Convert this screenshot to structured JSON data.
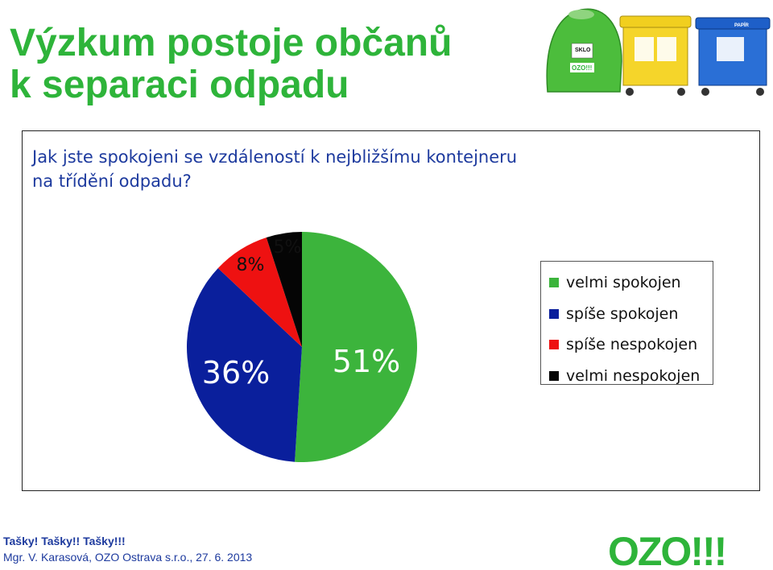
{
  "slide": {
    "title_line1": "Výzkum postoje občanů",
    "title_line2": "k separaci odpadu",
    "question_line1": "Jak jste spokojeni se vzdáleností k nejbližšímu kontejneru",
    "question_line2": "na třídění odpadu?",
    "footer_line1": "Tašky! Tašky!! Tašky!!!",
    "footer_line2": "Mgr. V. Karasová, OZO Ostrava s.r.o., 27. 6. 2013",
    "logo_text": "OZO!!!",
    "bin_labels": [
      "SKLO",
      "OZO!!!",
      "PAPÍR"
    ],
    "colors": {
      "title": "#2eb43a",
      "text_blue": "#1d3a9e",
      "logo": "#2eb43a"
    }
  },
  "chart_data": {
    "type": "pie",
    "title": "",
    "legend_position": "right",
    "slices": [
      {
        "label": "velmi spokojen",
        "value": 51,
        "display": "51%",
        "color": "#3cb43c"
      },
      {
        "label": "spíše spokojen",
        "value": 36,
        "display": "36%",
        "color": "#0a1f9c"
      },
      {
        "label": "spíše nespokojen",
        "value": 8,
        "display": "8%",
        "color": "#ee1111"
      },
      {
        "label": "velmi nespokojen",
        "value": 5,
        "display": "5%",
        "color": "#050505"
      }
    ]
  }
}
